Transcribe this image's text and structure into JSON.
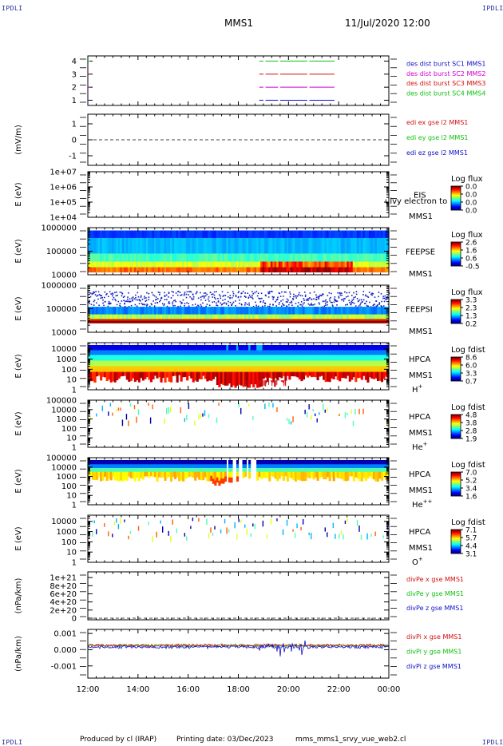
{
  "header": {
    "corner_tl": "IPDLI",
    "corner_tr": "IPDLI",
    "corner_bl": "IPDLI",
    "corner_br": "IPDLI",
    "mission": "MMS1",
    "datetime": "11/Jul/2020 12:00"
  },
  "footer": {
    "produced_by": "Produced by cl (IRAP)",
    "printing_date": "Printing date: 03/Dec/2023",
    "filename": "mms_mms1_srvy_vue_web2.cl"
  },
  "colors": {
    "mms1": "#1010c8",
    "mms2": "#d000d0",
    "mms3": "#d01010",
    "mms4": "#10c010"
  },
  "chart_data": [
    {
      "type": "line",
      "id": "des_burst",
      "y_ticks": [
        "1",
        "2",
        "3",
        "4"
      ],
      "ylim": [
        0.6,
        4.4
      ],
      "series": [
        {
          "name": "des dist burst SC1 MMS1",
          "level": 1,
          "color": "#1010c8",
          "intervals": [
            [
              "18:50",
              "19:00"
            ],
            [
              "19:05",
              "19:35"
            ],
            [
              "19:40",
              "20:45"
            ],
            [
              "20:50",
              "21:50"
            ]
          ]
        },
        {
          "name": "des dist burst SC2 MMS2",
          "level": 2,
          "color": "#d000d0",
          "intervals": [
            [
              "18:50",
              "19:00"
            ],
            [
              "19:05",
              "19:35"
            ],
            [
              "19:40",
              "20:45"
            ],
            [
              "20:50",
              "21:50"
            ]
          ]
        },
        {
          "name": "des dist burst SC3 MMS3",
          "level": 3,
          "color": "#d01010",
          "intervals": [
            [
              "18:50",
              "19:00"
            ],
            [
              "19:05",
              "19:35"
            ],
            [
              "19:40",
              "20:45"
            ],
            [
              "20:50",
              "21:50"
            ]
          ]
        },
        {
          "name": "des dist burst SC4 MMS4",
          "level": 4,
          "color": "#10c010",
          "intervals": [
            [
              "18:50",
              "19:00"
            ],
            [
              "19:05",
              "19:35"
            ],
            [
              "19:40",
              "20:45"
            ],
            [
              "20:50",
              "21:50"
            ]
          ]
        }
      ]
    },
    {
      "type": "line",
      "id": "edi_e",
      "ylabel": "(mV/m)",
      "y_ticks": [
        "-1",
        "0",
        "1"
      ],
      "ylim": [
        -1.6,
        1.6
      ],
      "zero_line": true,
      "series": [
        {
          "name": "edi ex gse l2 MMS1",
          "color": "#d01010"
        },
        {
          "name": "edi ey gse l2 MMS1",
          "color": "#10c010"
        },
        {
          "name": "edi ez gse l2 MMS1",
          "color": "#1010c8"
        }
      ]
    },
    {
      "type": "heatmap",
      "id": "eis",
      "ylabel": "E (eV)",
      "y_ticks": [
        "1e+04",
        "1e+05",
        "1e+06",
        "1e+07"
      ],
      "y_log": true,
      "ylim": [
        10000,
        10000000
      ],
      "instrument": "EIS",
      "spacecraft": "MMS1",
      "overlay": "ulvy electron to",
      "colorbar": {
        "title": "Log flux",
        "ticks": [
          "0.0",
          "0.0",
          "0.0",
          "0.0"
        ]
      }
    },
    {
      "type": "heatmap",
      "id": "feepse",
      "ylabel": "E (eV)",
      "y_ticks": [
        "10000",
        "100000",
        "1000000"
      ],
      "y_log": true,
      "ylim": [
        10000,
        1000000
      ],
      "instrument": "FEEPSE",
      "spacecraft": "MMS1",
      "colorbar": {
        "title": "Log flux",
        "ticks": [
          "2.6",
          "1.6",
          "0.6",
          "-0.5"
        ]
      }
    },
    {
      "type": "heatmap",
      "id": "feepsi",
      "ylabel": "E (eV)",
      "y_ticks": [
        "10000",
        "100000",
        "1000000"
      ],
      "y_log": true,
      "ylim": [
        10000,
        1000000
      ],
      "instrument": "FEEPSI",
      "spacecraft": "MMS1",
      "colorbar": {
        "title": "Log flux",
        "ticks": [
          "3.3",
          "2.3",
          "1.3",
          "0.2"
        ]
      }
    },
    {
      "type": "heatmap",
      "id": "hpca_h",
      "ylabel": "E (eV)",
      "y_ticks": [
        "1",
        "10",
        "100",
        "1000",
        "10000"
      ],
      "y_log": true,
      "ylim": [
        1,
        40000
      ],
      "instrument": "HPCA",
      "spacecraft": "MMS1",
      "species": "H",
      "charge": "+",
      "colorbar": {
        "title": "Log fdist",
        "ticks": [
          "8.6",
          "6.0",
          "3.3",
          "0.7"
        ]
      }
    },
    {
      "type": "heatmap",
      "id": "hpca_he",
      "ylabel": "E (eV)",
      "y_ticks": [
        "1",
        "10",
        "100",
        "1000",
        "10000",
        "100000"
      ],
      "y_log": true,
      "ylim": [
        1,
        100000
      ],
      "instrument": "HPCA",
      "spacecraft": "MMS1",
      "species": "He",
      "charge": "+",
      "colorbar": {
        "title": "Log fdist",
        "ticks": [
          "4.8",
          "3.8",
          "2.8",
          "1.9"
        ]
      }
    },
    {
      "type": "heatmap",
      "id": "hpca_hepp",
      "ylabel": "E (eV)",
      "y_ticks": [
        "1",
        "10",
        "100",
        "1000",
        "10000",
        "100000"
      ],
      "y_log": true,
      "ylim": [
        1,
        100000
      ],
      "instrument": "HPCA",
      "spacecraft": "MMS1",
      "species": "He",
      "charge": "++",
      "colorbar": {
        "title": "Log fdist",
        "ticks": [
          "7.0",
          "5.2",
          "3.4",
          "1.6"
        ]
      }
    },
    {
      "type": "heatmap",
      "id": "hpca_o",
      "ylabel": "E (eV)",
      "y_ticks": [
        "1",
        "10",
        "100",
        "1000",
        "10000"
      ],
      "y_log": true,
      "ylim": [
        1,
        40000
      ],
      "instrument": "HPCA",
      "spacecraft": "MMS1",
      "species": "O",
      "charge": "+",
      "colorbar": {
        "title": "Log fdist",
        "ticks": [
          "7.1",
          "5.7",
          "4.4",
          "3.1"
        ]
      }
    },
    {
      "type": "line",
      "id": "divpe",
      "ylabel": "(nPa/km)",
      "y_ticks": [
        "0",
        "2e+20",
        "4e+20",
        "6e+20",
        "8e+20",
        "1e+21"
      ],
      "ylim": [
        -4e+19,
        1.14e+21
      ],
      "zero_line": true,
      "series": [
        {
          "name": "divPe x gse MMS1",
          "color": "#d01010"
        },
        {
          "name": "divPe y gse MMS1",
          "color": "#10c010"
        },
        {
          "name": "divPe z gse MMS1",
          "color": "#1010c8"
        }
      ]
    },
    {
      "type": "line",
      "id": "divpi",
      "ylabel": "(nPa/km)",
      "y_ticks": [
        "-0.001",
        "0.000",
        "0.001"
      ],
      "ylim": [
        -0.00175,
        0.00125
      ],
      "series": [
        {
          "name": "divPi x gse MMS1",
          "color": "#d01010"
        },
        {
          "name": "divPi y gse MMS1",
          "color": "#10c010"
        },
        {
          "name": "divPi z gse MMS1",
          "color": "#1010c8"
        }
      ]
    }
  ],
  "time_axis": {
    "labels": [
      "12:00",
      "14:00",
      "16:00",
      "18:00",
      "20:00",
      "22:00",
      "00:00"
    ],
    "range": [
      "12:00",
      "00:00"
    ]
  }
}
